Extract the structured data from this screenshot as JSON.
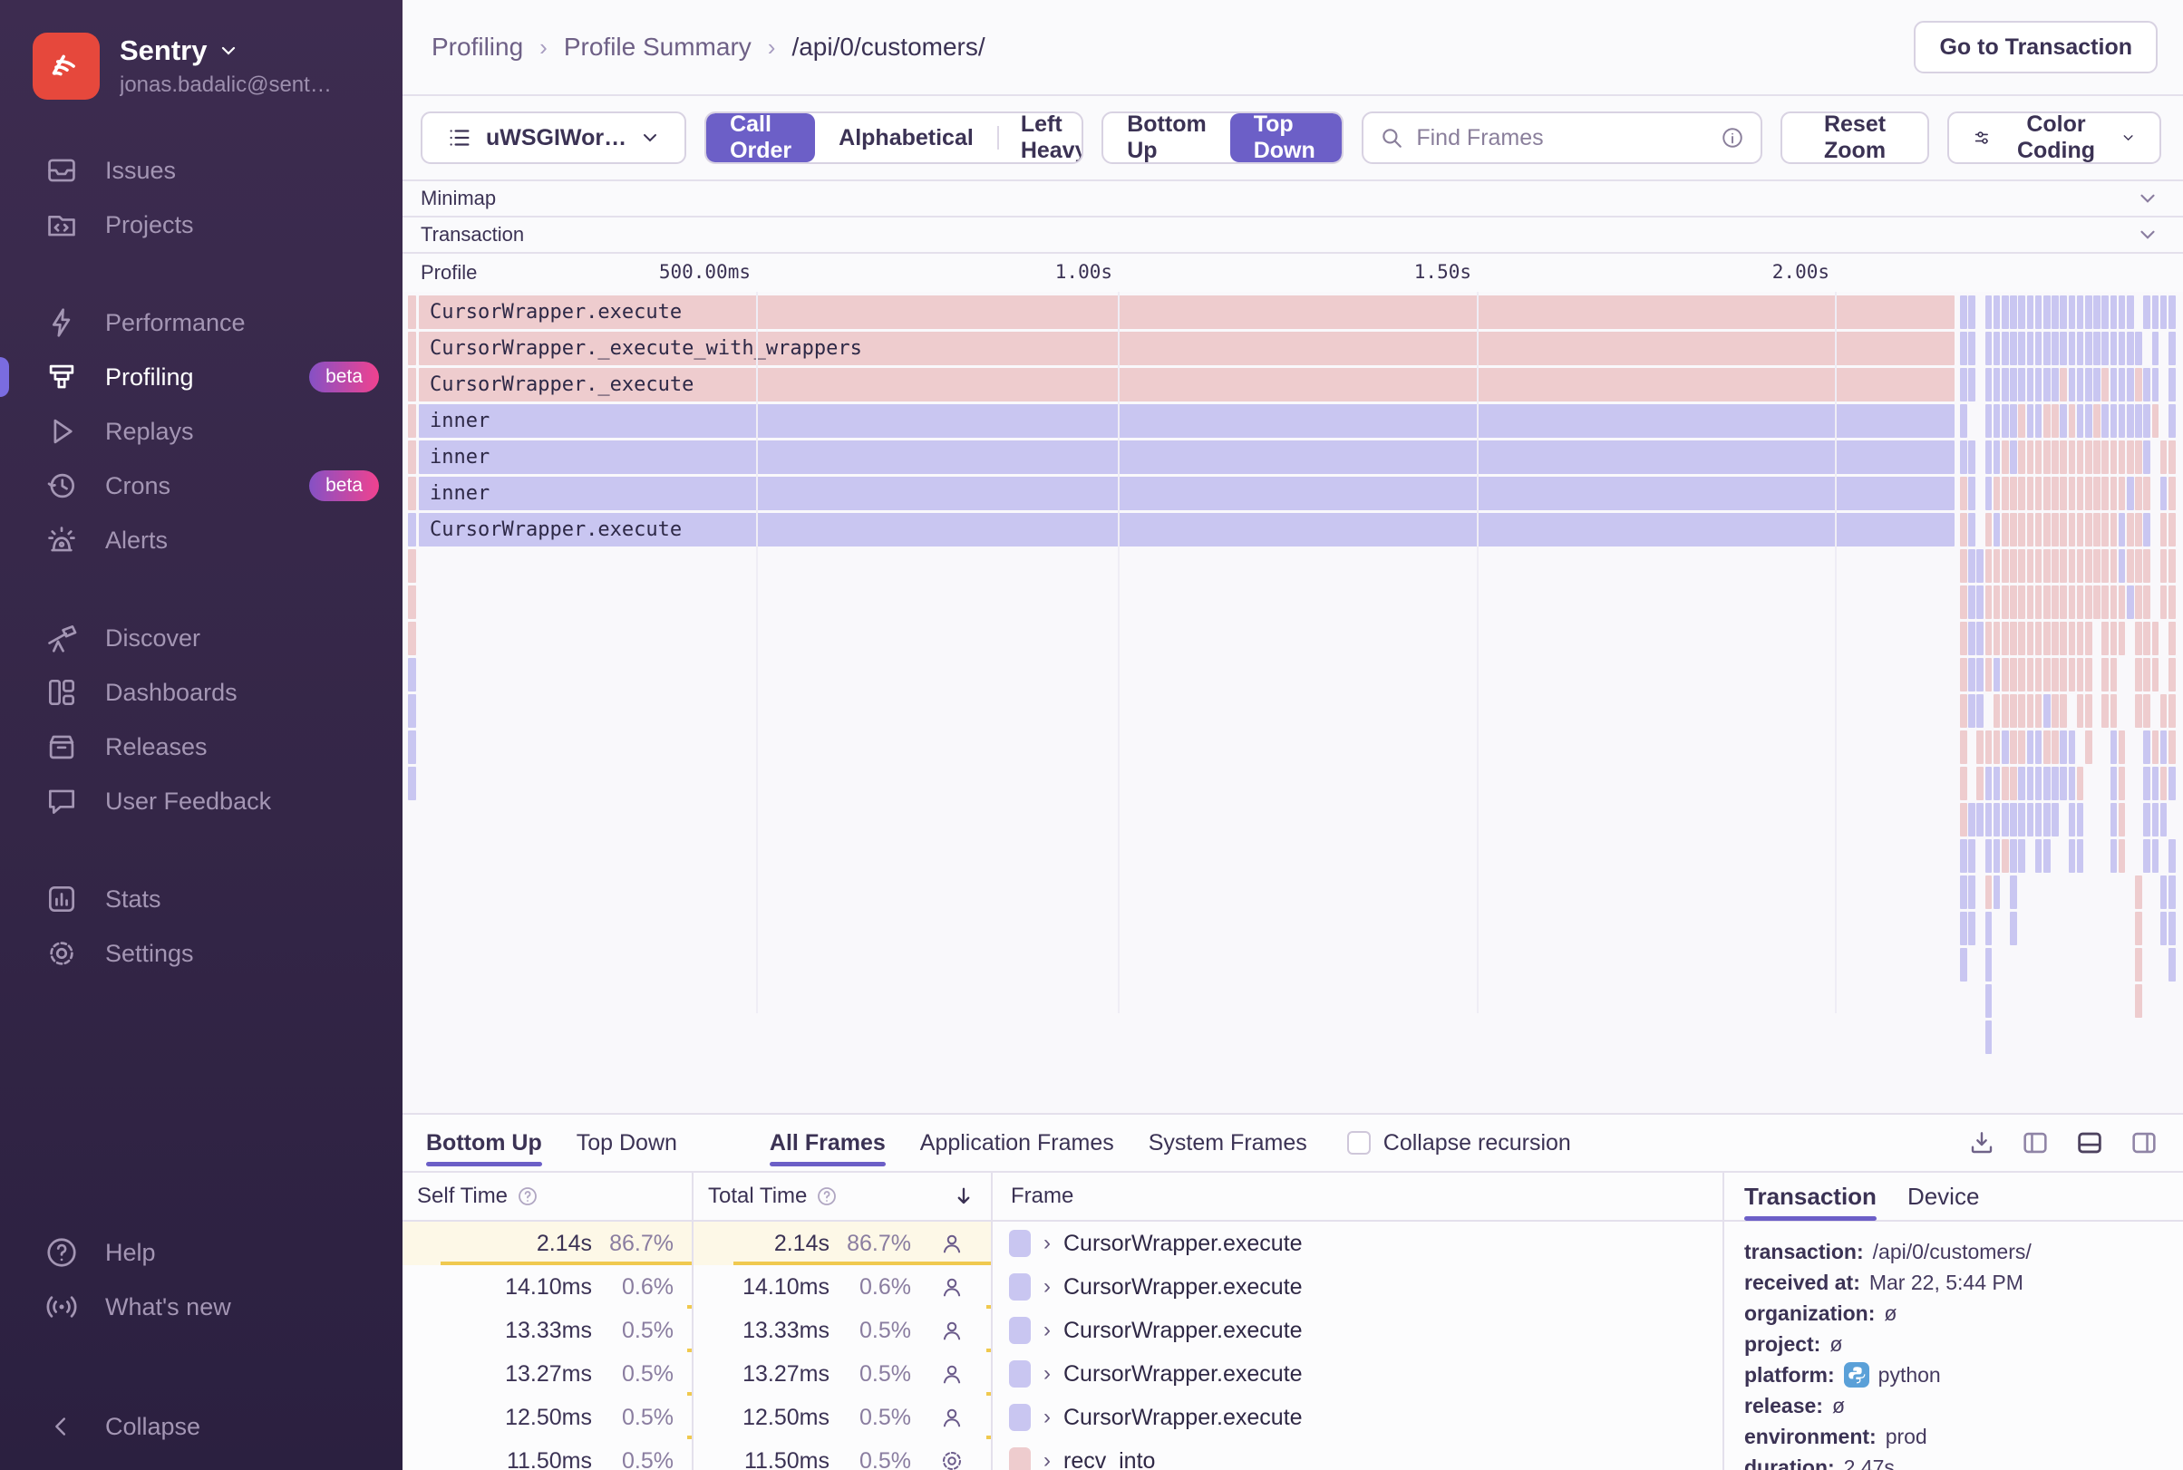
{
  "sidebar": {
    "org": "Sentry",
    "email": "jonas.badalic@sent…",
    "sections": [
      [
        {
          "label": "Issues",
          "icon": "issues"
        },
        {
          "label": "Projects",
          "icon": "projects"
        }
      ],
      [
        {
          "label": "Performance",
          "icon": "performance"
        },
        {
          "label": "Profiling",
          "icon": "profiling",
          "active": true,
          "badge": "beta"
        },
        {
          "label": "Replays",
          "icon": "replays"
        },
        {
          "label": "Crons",
          "icon": "crons",
          "badge": "beta"
        },
        {
          "label": "Alerts",
          "icon": "alerts"
        }
      ],
      [
        {
          "label": "Discover",
          "icon": "discover"
        },
        {
          "label": "Dashboards",
          "icon": "dashboards"
        },
        {
          "label": "Releases",
          "icon": "releases"
        },
        {
          "label": "User Feedback",
          "icon": "feedback"
        }
      ],
      [
        {
          "label": "Stats",
          "icon": "stats"
        },
        {
          "label": "Settings",
          "icon": "settings"
        }
      ]
    ],
    "footer": [
      {
        "label": "Help",
        "icon": "help"
      },
      {
        "label": "What's new",
        "icon": "whatsnew"
      }
    ],
    "collapse": {
      "label": "Collapse",
      "icon": "collapse"
    }
  },
  "header": {
    "breadcrumbs": [
      "Profiling",
      "Profile Summary",
      "/api/0/customers/"
    ],
    "go_to_transaction": "Go to Transaction"
  },
  "toolbar": {
    "thread": "uWSGIWor…",
    "sort_options": [
      "Call Order",
      "Alphabetical",
      "Left Heavy"
    ],
    "sort_active": 0,
    "direction_options": [
      "Bottom Up",
      "Top Down"
    ],
    "direction_active": 1,
    "search_placeholder": "Find Frames",
    "reset_zoom": "Reset Zoom",
    "color_coding": "Color Coding"
  },
  "strips": {
    "minimap": "Minimap",
    "transaction": "Transaction",
    "profile": "Profile"
  },
  "timeline_ticks": [
    "500.00ms",
    "1.00s",
    "1.50s",
    "2.00s"
  ],
  "flamegraph": {
    "main_rows": [
      {
        "label": "CursorWrapper.execute",
        "color": "pink",
        "sliver": "pink"
      },
      {
        "label": "CursorWrapper._execute_with_wrappers",
        "color": "pink",
        "sliver": "pink"
      },
      {
        "label": "CursorWrapper._execute",
        "color": "pink",
        "sliver": "pink"
      },
      {
        "label": "inner",
        "color": "lav",
        "sliver": "pink"
      },
      {
        "label": "inner",
        "color": "lav",
        "sliver": "pink"
      },
      {
        "label": "inner",
        "color": "lav",
        "sliver": "pink"
      },
      {
        "label": "CursorWrapper.execute",
        "color": "lav",
        "sliver": "lav"
      }
    ],
    "extra_slivers": [
      "pink",
      "pink",
      "pink",
      "lav",
      "lav",
      "lav",
      "lav"
    ],
    "cluster_rows": [
      "LL.LLLLLLLLLLLLLLLLLL.LLLL",
      "LL.LLLLLLLLLLLLLLLLLLL.L.L",
      "LL.LLLLLLLLLPLLLLPLLLPLL.L",
      "L..LLLLPLLPPLPLLPLLLLLLP.L",
      "LL.LLPLPPPPPPPPPPPPPPPL.PP",
      "PL.LPPPPPPPPPPPPPPPPLPP.LP",
      "PL.PLPPPPPPPPPPPPPPLPPL.PP",
      "PLLPPPPPPPPPPPPPPPPLPPP.PP",
      "PLLPPPPPPPPPPPPPPPPPLPP.PP",
      "PLLPPPPPPPPPPPPP.PPP.PPP.P",
      "PLLPLPPPPPPPPPPP.PP..PPP.P",
      "PLL.PPPPPPLPP.PP.PP..PP.PP",
      "P.PPPLPPLLPPLL.P..LP..LPLP",
      "P.PLLPPLLLLLLLP...LP..LLPL",
      "PLLLLLLLLLLL.LL...LP..LLL.",
      "LL.LLPLL.LL..LL...LP..LL.L",
      "LL.PL.L..............P..LL",
      "LL.L..L..............P..LL",
      "L..L.................P...L",
      "...L.................P....",
      "...L......................"
    ]
  },
  "bottom_panel": {
    "view_tabs": [
      "Bottom Up",
      "Top Down"
    ],
    "view_active": 0,
    "frame_tabs": [
      "All Frames",
      "Application Frames",
      "System Frames"
    ],
    "frame_active": 0,
    "collapse_recursion": "Collapse recursion",
    "table": {
      "headers": {
        "self": "Self Time",
        "total": "Total Time",
        "frame": "Frame"
      },
      "rows": [
        {
          "self": "2.14s",
          "self_pct": "86.7%",
          "total": "2.14s",
          "total_pct": "86.7%",
          "icon": "user",
          "swatch": "lav",
          "frame": "CursorWrapper.execute",
          "highlight": true,
          "bar_pct": 86.7
        },
        {
          "self": "14.10ms",
          "self_pct": "0.6%",
          "total": "14.10ms",
          "total_pct": "0.6%",
          "icon": "user",
          "swatch": "lav",
          "frame": "CursorWrapper.execute",
          "highlight": false,
          "bar_pct": 0.6
        },
        {
          "self": "13.33ms",
          "self_pct": "0.5%",
          "total": "13.33ms",
          "total_pct": "0.5%",
          "icon": "user",
          "swatch": "lav",
          "frame": "CursorWrapper.execute",
          "highlight": false,
          "bar_pct": 0.5
        },
        {
          "self": "13.27ms",
          "self_pct": "0.5%",
          "total": "13.27ms",
          "total_pct": "0.5%",
          "icon": "user",
          "swatch": "lav",
          "frame": "CursorWrapper.execute",
          "highlight": false,
          "bar_pct": 0.5
        },
        {
          "self": "12.50ms",
          "self_pct": "0.5%",
          "total": "12.50ms",
          "total_pct": "0.5%",
          "icon": "user",
          "swatch": "lav",
          "frame": "CursorWrapper.execute",
          "highlight": false,
          "bar_pct": 0.5
        },
        {
          "self": "11.50ms",
          "self_pct": "0.5%",
          "total": "11.50ms",
          "total_pct": "0.5%",
          "icon": "gear",
          "swatch": "pink",
          "frame": "recv_into",
          "highlight": false,
          "bar_pct": 0.5
        }
      ]
    },
    "details": {
      "tabs": [
        "Transaction",
        "Device"
      ],
      "active": 0,
      "fields": [
        {
          "label": "transaction:",
          "value": "/api/0/customers/"
        },
        {
          "label": "received at:",
          "value": "Mar 22, 5:44 PM"
        },
        {
          "label": "organization:",
          "value": "ø"
        },
        {
          "label": "project:",
          "value": "ø"
        },
        {
          "label": "platform:",
          "value": "python",
          "icon": "python"
        },
        {
          "label": "release:",
          "value": "ø"
        },
        {
          "label": "environment:",
          "value": "prod"
        },
        {
          "label": "duration:",
          "value": "2.47s"
        }
      ]
    }
  }
}
